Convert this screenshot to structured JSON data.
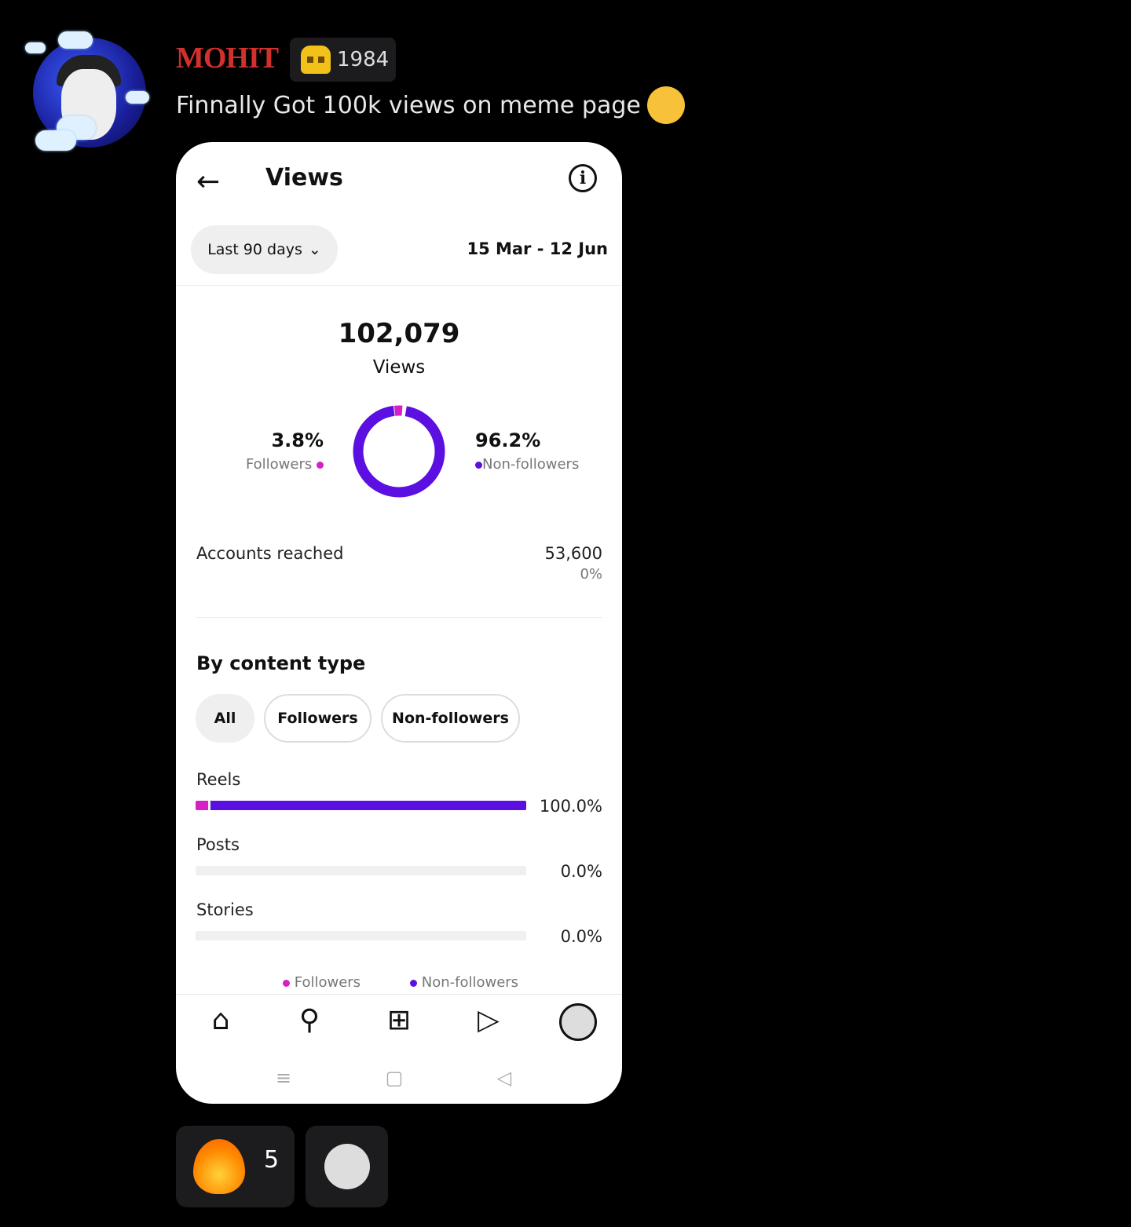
{
  "message": {
    "username": "MOHIT",
    "badge_icon": "skull-icon",
    "badge_text": "1984",
    "text": "Finnally Got 100k views on meme page",
    "emoji": "relieved-face-emoji"
  },
  "insights": {
    "title": "Views",
    "range_label": "Last 90 days",
    "date_range": "15 Mar - 12 Jun",
    "total": "102,079",
    "total_label": "Views",
    "followers_pct": "3.8%",
    "followers_label": "Followers",
    "nonfollowers_pct": "96.2%",
    "nonfollowers_label": "Non-followers",
    "colors": {
      "followers": "#d61fc4",
      "nonfollowers": "#5b0fe0"
    },
    "accounts_reached_label": "Accounts reached",
    "accounts_reached": "53,600",
    "accounts_reached_change": "0%",
    "by_content_title": "By content type",
    "filters": [
      "All",
      "Followers",
      "Non-followers"
    ],
    "rows": [
      {
        "label": "Reels",
        "pct": "100.0%",
        "followers": 3.8,
        "nonfollowers": 96.2
      },
      {
        "label": "Posts",
        "pct": "0.0%",
        "followers": 0,
        "nonfollowers": 0
      },
      {
        "label": "Stories",
        "pct": "0.0%",
        "followers": 0,
        "nonfollowers": 0
      }
    ],
    "legend": [
      "Followers",
      "Non-followers"
    ]
  },
  "reactions": [
    {
      "emoji": "fire-emoji",
      "count": "5"
    },
    {
      "emoji": "add-reaction-icon"
    }
  ]
}
